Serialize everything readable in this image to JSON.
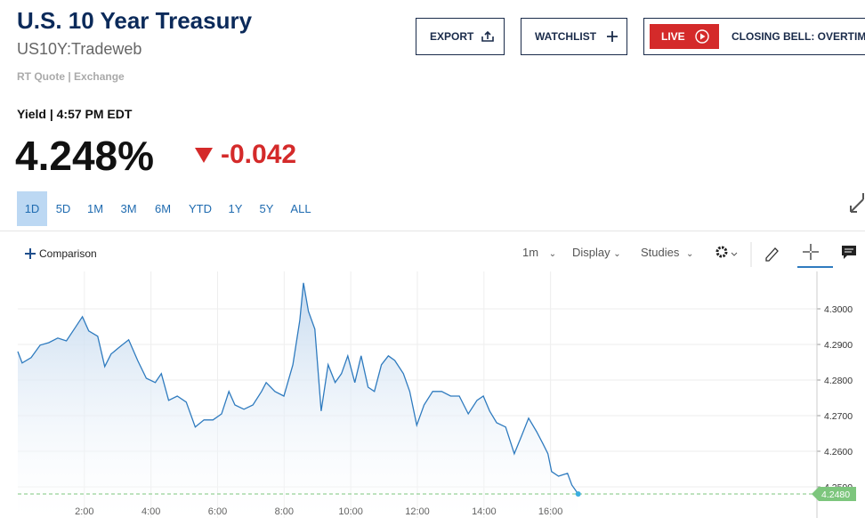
{
  "header": {
    "title": "U.S. 10 Year Treasury",
    "symbol": "US10Y:Tradeweb",
    "quote_info": "RT Quote | Exchange"
  },
  "buttons": {
    "export": "EXPORT",
    "watchlist": "WATCHLIST",
    "live": "LIVE",
    "live_show": "CLOSING BELL: OVERTIME"
  },
  "quote": {
    "label": "Yield | 4:57 PM EDT",
    "price": "4.248%",
    "change": "-0.042"
  },
  "ranges": [
    "1D",
    "5D",
    "1M",
    "3M",
    "6M",
    "YTD",
    "1Y",
    "5Y",
    "ALL"
  ],
  "selected_range": "1D",
  "toolbar": {
    "comparison": "Comparison",
    "interval": "1m",
    "display": "Display",
    "studies": "Studies"
  },
  "chart_data": {
    "type": "area",
    "color": "#2f7bbf",
    "fill": "#c6daef",
    "grid": true,
    "x": [
      0.0,
      0.13,
      0.4,
      0.67,
      0.93,
      1.2,
      1.46,
      1.73,
      1.94,
      2.13,
      2.4,
      2.61,
      2.8,
      3.06,
      3.33,
      3.6,
      3.86,
      4.13,
      4.31,
      4.53,
      4.79,
      5.06,
      5.33,
      5.59,
      5.86,
      6.12,
      6.34,
      6.52,
      6.79,
      7.06,
      7.32,
      7.46,
      7.72,
      7.99,
      8.26,
      8.47,
      8.58,
      8.73,
      8.92,
      9.11,
      9.32,
      9.53,
      9.72,
      9.91,
      10.12,
      10.31,
      10.52,
      10.71,
      10.92,
      11.13,
      11.32,
      11.58,
      11.77,
      11.98,
      12.2,
      12.46,
      12.73,
      13.0,
      13.26,
      13.53,
      13.79,
      13.98,
      14.17,
      14.38,
      14.65,
      14.91,
      15.13,
      15.34,
      15.58,
      15.76,
      15.92,
      16.03,
      16.24,
      16.51,
      16.64,
      16.83
    ],
    "values": [
      4.288,
      4.2848,
      4.2863,
      4.2898,
      4.2905,
      4.2918,
      4.291,
      4.2948,
      4.2978,
      4.2938,
      4.2923,
      4.2838,
      4.2873,
      4.2893,
      4.2913,
      4.2855,
      4.2805,
      4.2793,
      4.2818,
      4.2743,
      4.2755,
      4.2738,
      4.2668,
      4.2688,
      4.2688,
      4.2705,
      4.2768,
      4.273,
      4.2718,
      4.273,
      4.2768,
      4.2793,
      4.2768,
      4.2755,
      4.2843,
      4.2968,
      4.3073,
      4.2993,
      4.2943,
      4.2713,
      4.2843,
      4.2793,
      4.2818,
      4.2868,
      4.2793,
      4.2868,
      4.278,
      4.2768,
      4.2843,
      4.2868,
      4.2855,
      4.2818,
      4.2768,
      4.2673,
      4.273,
      4.2768,
      4.2768,
      4.2755,
      4.2755,
      4.2705,
      4.2743,
      4.2755,
      4.2713,
      4.268,
      4.2668,
      4.2593,
      4.2643,
      4.2693,
      4.2655,
      4.2623,
      4.2593,
      4.2543,
      4.253,
      4.2538,
      4.2505,
      4.248
    ],
    "xlim": [
      0,
      24
    ],
    "ylim": [
      4.2455,
      4.3105
    ],
    "xticks": [
      {
        "value": 2,
        "label": "2:00"
      },
      {
        "value": 4,
        "label": "4:00"
      },
      {
        "value": 6,
        "label": "6:00"
      },
      {
        "value": 8,
        "label": "8:00"
      },
      {
        "value": 10,
        "label": "10:00"
      },
      {
        "value": 12,
        "label": "12:00"
      },
      {
        "value": 14,
        "label": "14:00"
      },
      {
        "value": 16,
        "label": "16:00"
      }
    ],
    "yticks": [
      {
        "value": 4.25,
        "label": "4.2500"
      },
      {
        "value": 4.26,
        "label": "4.2600"
      },
      {
        "value": 4.27,
        "label": "4.2700"
      },
      {
        "value": 4.28,
        "label": "4.2800"
      },
      {
        "value": 4.29,
        "label": "4.2900"
      },
      {
        "value": 4.3,
        "label": "4.3000"
      }
    ],
    "last_label": "4.2480",
    "last_color": "#7dc67d"
  }
}
